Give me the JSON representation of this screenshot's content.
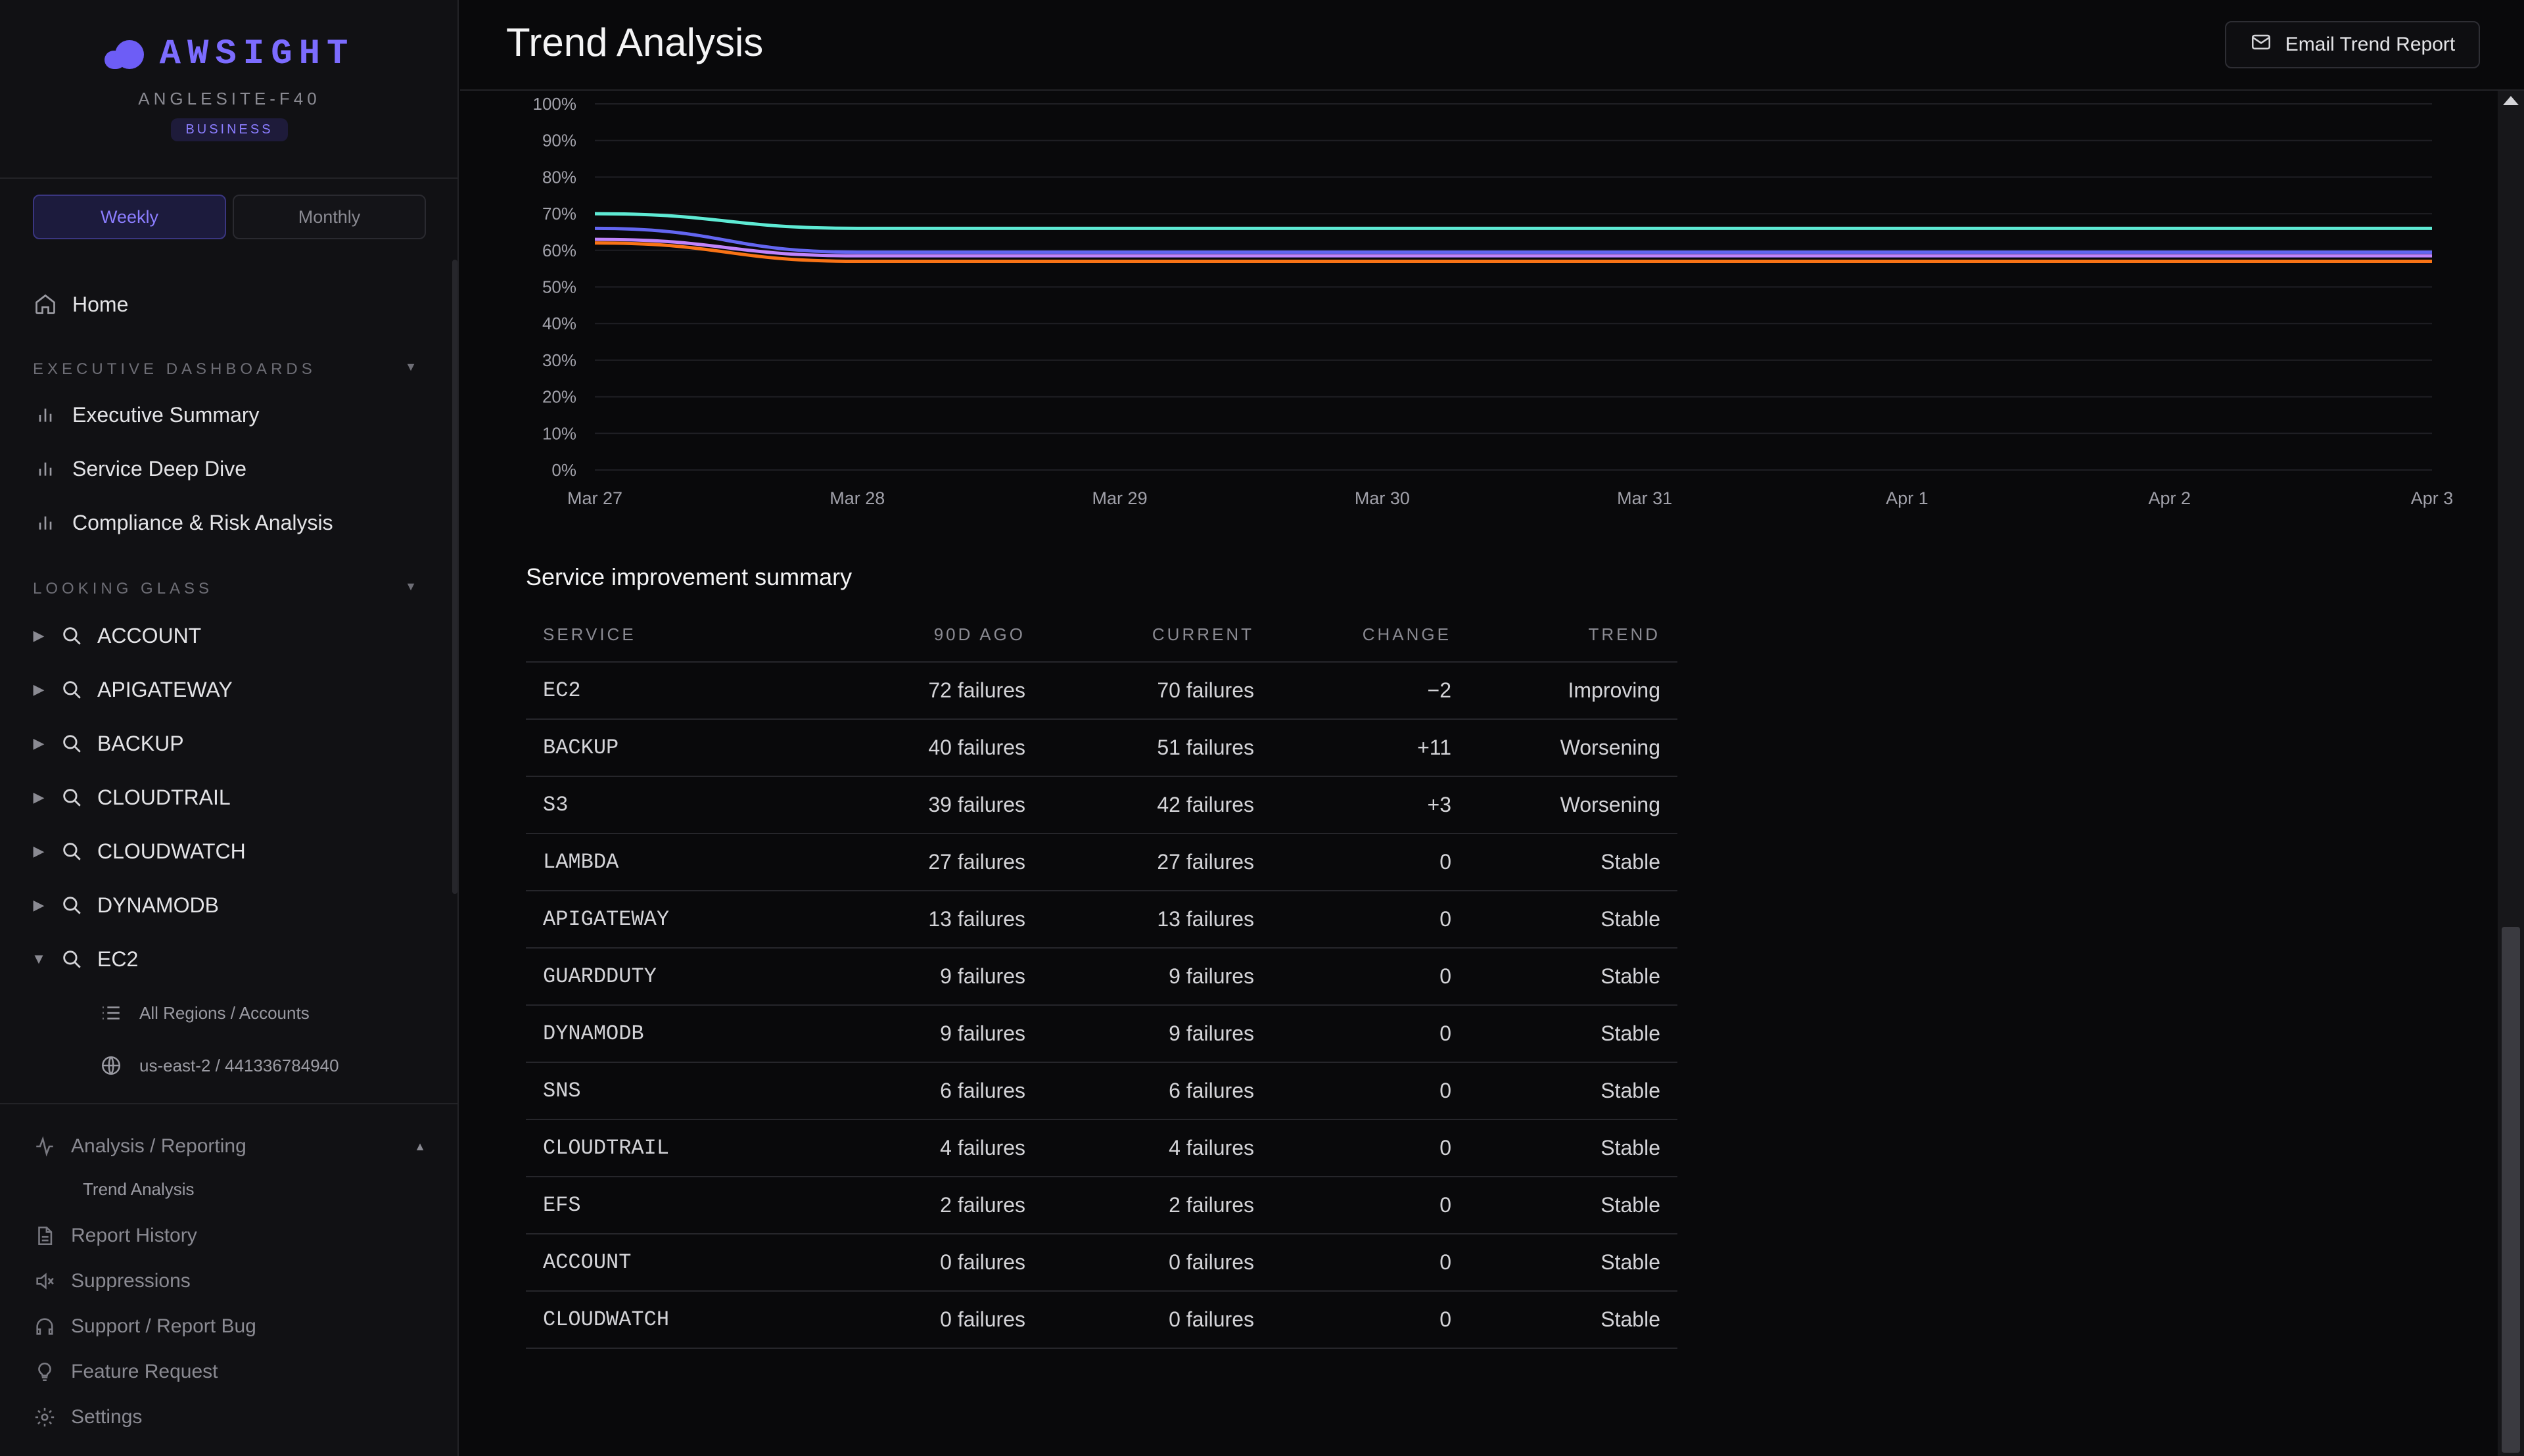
{
  "brand": {
    "name": "AWSIGHT",
    "org": "ANGLESITE-F40",
    "plan": "BUSINESS"
  },
  "period": {
    "options": [
      "Weekly",
      "Monthly"
    ],
    "selected": "Weekly"
  },
  "nav": {
    "home": "Home",
    "exec_section": "EXECUTIVE DASHBOARDS",
    "exec_items": [
      "Executive Summary",
      "Service Deep Dive",
      "Compliance & Risk Analysis"
    ],
    "looking_glass_section": "LOOKING GLASS",
    "services": [
      "ACCOUNT",
      "APIGATEWAY",
      "BACKUP",
      "CLOUDTRAIL",
      "CLOUDWATCH",
      "DYNAMODB",
      "EC2"
    ],
    "expanded_service": "EC2",
    "ec2_children": [
      "All Regions / Accounts",
      "us-east-2 / 441336784940"
    ],
    "analysis_section": "Analysis / Reporting",
    "analysis_children": [
      "Trend Analysis"
    ],
    "footer": [
      "Report History",
      "Suppressions",
      "Support / Report Bug",
      "Feature Request",
      "Settings"
    ]
  },
  "header": {
    "title": "Trend Analysis",
    "email_button": "Email Trend Report"
  },
  "chart_data": {
    "type": "line",
    "x": [
      "Mar 27",
      "Mar 28",
      "Mar 29",
      "Mar 30",
      "Mar 31",
      "Apr 1",
      "Apr 2",
      "Apr 3"
    ],
    "ylim": [
      0,
      100
    ],
    "y_ticks": [
      "0%",
      "10%",
      "20%",
      "30%",
      "40%",
      "50%",
      "60%",
      "70%",
      "80%",
      "90%",
      "100%"
    ],
    "grid": true,
    "series": [
      {
        "color": "#5eead4",
        "values": [
          70,
          66,
          66,
          66,
          66,
          66,
          66,
          66
        ]
      },
      {
        "color": "#6366f1",
        "values": [
          66,
          59.5,
          59.5,
          59.5,
          59.5,
          59.5,
          59.5,
          59.5
        ]
      },
      {
        "color": "#c084fc",
        "values": [
          63,
          58.5,
          58.5,
          58.5,
          58.5,
          58.5,
          58.5,
          58.5
        ]
      },
      {
        "color": "#f97316",
        "values": [
          62,
          57,
          57,
          57,
          57,
          57,
          57,
          57
        ]
      }
    ]
  },
  "summary": {
    "title": "Service improvement summary",
    "columns": [
      "SERVICE",
      "90D AGO",
      "CURRENT",
      "CHANGE",
      "TREND"
    ],
    "rows": [
      {
        "service": "EC2",
        "ago": "72 failures",
        "current": "70 failures",
        "change": "−2",
        "trend": "Improving",
        "kind": "improving"
      },
      {
        "service": "BACKUP",
        "ago": "40 failures",
        "current": "51 failures",
        "change": "+11",
        "trend": "Worsening",
        "kind": "worsening"
      },
      {
        "service": "S3",
        "ago": "39 failures",
        "current": "42 failures",
        "change": "+3",
        "trend": "Worsening",
        "kind": "worsening"
      },
      {
        "service": "LAMBDA",
        "ago": "27 failures",
        "current": "27 failures",
        "change": "0",
        "trend": "Stable",
        "kind": "stable"
      },
      {
        "service": "APIGATEWAY",
        "ago": "13 failures",
        "current": "13 failures",
        "change": "0",
        "trend": "Stable",
        "kind": "stable"
      },
      {
        "service": "GUARDDUTY",
        "ago": "9 failures",
        "current": "9 failures",
        "change": "0",
        "trend": "Stable",
        "kind": "stable"
      },
      {
        "service": "DYNAMODB",
        "ago": "9 failures",
        "current": "9 failures",
        "change": "0",
        "trend": "Stable",
        "kind": "stable"
      },
      {
        "service": "SNS",
        "ago": "6 failures",
        "current": "6 failures",
        "change": "0",
        "trend": "Stable",
        "kind": "stable"
      },
      {
        "service": "CLOUDTRAIL",
        "ago": "4 failures",
        "current": "4 failures",
        "change": "0",
        "trend": "Stable",
        "kind": "stable"
      },
      {
        "service": "EFS",
        "ago": "2 failures",
        "current": "2 failures",
        "change": "0",
        "trend": "Stable",
        "kind": "stable"
      },
      {
        "service": "ACCOUNT",
        "ago": "0 failures",
        "current": "0 failures",
        "change": "0",
        "trend": "Stable",
        "kind": "stable"
      },
      {
        "service": "CLOUDWATCH",
        "ago": "0 failures",
        "current": "0 failures",
        "change": "0",
        "trend": "Stable",
        "kind": "stable"
      }
    ]
  }
}
